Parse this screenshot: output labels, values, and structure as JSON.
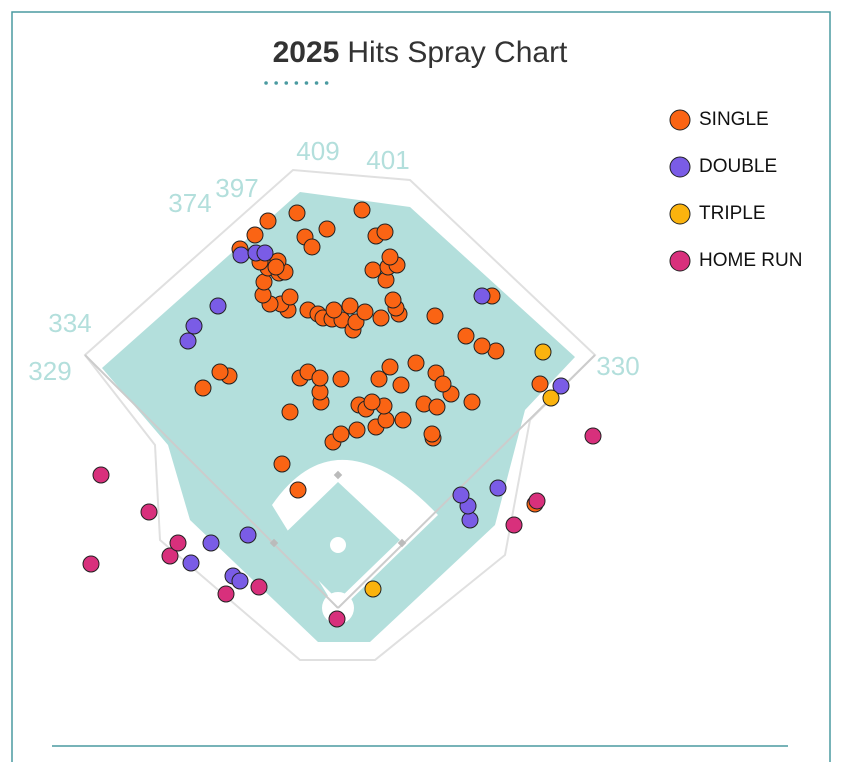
{
  "chart_data": {
    "type": "scatter",
    "title_bold": "2025",
    "title": "Hits Spray Chart",
    "xlim": [
      0,
      842
    ],
    "ylim": [
      762,
      0
    ],
    "legend": "top-right",
    "field_labels": [
      "409",
      "401",
      "397",
      "374",
      "334",
      "329",
      "330"
    ],
    "series": [
      {
        "name": "SINGLE",
        "color": "#fa6414",
        "x": [
          298,
          282,
          333,
          341,
          357,
          376,
          386,
          403,
          433,
          432,
          290,
          321,
          320,
          359,
          366,
          384,
          372,
          424,
          437,
          451,
          472,
          203,
          229,
          220,
          300,
          308,
          320,
          341,
          379,
          401,
          390,
          416,
          436,
          443,
          496,
          482,
          466,
          435,
          492,
          540,
          535,
          308,
          318,
          323,
          332,
          342,
          353,
          356,
          334,
          350,
          365,
          381,
          399,
          396,
          393,
          288,
          281,
          290,
          270,
          263,
          264,
          268,
          279,
          285,
          278,
          260,
          240,
          255,
          268,
          297,
          305,
          312,
          327,
          362,
          376,
          385,
          373,
          386,
          388,
          397,
          390,
          276
        ],
        "y": [
          272,
          298,
          320,
          328,
          332,
          335,
          342,
          342,
          324,
          328,
          350,
          360,
          370,
          357,
          353,
          356,
          360,
          358,
          355,
          368,
          360,
          374,
          386,
          390,
          384,
          390,
          384,
          383,
          383,
          377,
          395,
          399,
          389,
          378,
          411,
          416,
          426,
          446,
          466,
          378,
          258,
          452,
          448,
          444,
          443,
          442,
          432,
          440,
          452,
          456,
          450,
          444,
          448,
          454,
          462,
          452,
          458,
          465,
          458,
          467,
          480,
          494,
          489,
          490,
          501,
          500,
          513,
          527,
          541,
          549,
          525,
          515,
          533,
          552,
          526,
          530,
          492,
          482,
          495,
          497,
          505,
          495
        ]
      },
      {
        "name": "DOUBLE",
        "color": "#7a5ce6",
        "x": [
          191,
          233,
          240,
          211,
          248,
          470,
          468,
          461,
          498,
          561,
          188,
          194,
          218,
          482,
          241,
          256,
          265
        ],
        "y": [
          199,
          186,
          181,
          219,
          227,
          242,
          256,
          267,
          274,
          376,
          421,
          436,
          456,
          466,
          507,
          509,
          509
        ]
      },
      {
        "name": "TRIPLE",
        "color": "#fbb30e",
        "x": [
          373,
          551,
          543
        ],
        "y": [
          173,
          364,
          410
        ]
      },
      {
        "name": "HOME RUN",
        "color": "#d8307c",
        "x": [
          337,
          226,
          259,
          91,
          170,
          178,
          149,
          101,
          514,
          537,
          593
        ],
        "y": [
          143,
          168,
          175,
          198,
          206,
          219,
          250,
          287,
          237,
          261,
          326
        ]
      }
    ]
  }
}
